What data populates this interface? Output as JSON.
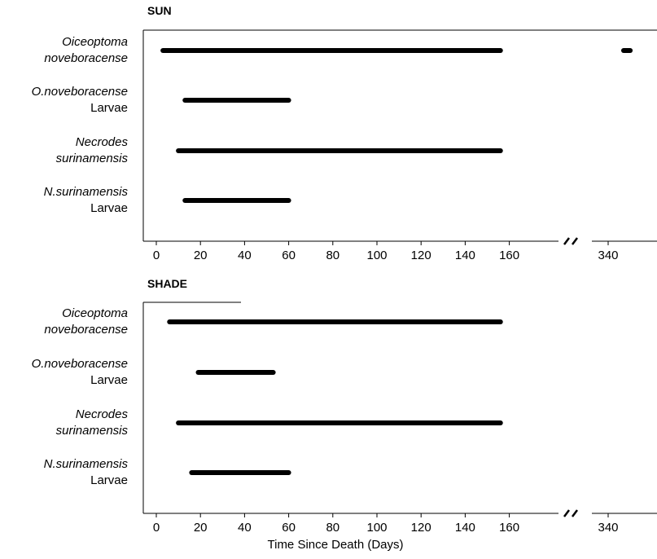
{
  "chart_data": [
    {
      "type": "gantt",
      "title": "SUN",
      "xlabel": "",
      "x_ticks": [
        0,
        20,
        40,
        60,
        80,
        100,
        120,
        140,
        160,
        340
      ],
      "x_axis_break": true,
      "xlim": [
        0,
        360
      ],
      "categories": [
        {
          "line1": "Oiceoptoma",
          "line1_italic": true,
          "line2": "noveboracense",
          "line2_italic": true
        },
        {
          "line1": "O.noveboracense",
          "line1_italic": true,
          "line2": "Larvae",
          "line2_italic": false
        },
        {
          "line1": "Necrodes",
          "line1_italic": true,
          "line2": "surinamensis",
          "line2_italic": true
        },
        {
          "line1": "N.surinamensis",
          "line1_italic": true,
          "line2": "Larvae",
          "line2_italic": false
        }
      ],
      "bars": [
        {
          "category": 0,
          "start": 3,
          "end": 156
        },
        {
          "category": 0,
          "start": 347,
          "end": 350
        },
        {
          "category": 1,
          "start": 13,
          "end": 60
        },
        {
          "category": 2,
          "start": 10,
          "end": 156
        },
        {
          "category": 3,
          "start": 13,
          "end": 60
        }
      ],
      "bar_color": "#000000",
      "grid": false
    },
    {
      "type": "gantt",
      "title": "SHADE",
      "xlabel": "Time Since Death (Days)",
      "x_ticks": [
        0,
        20,
        40,
        60,
        80,
        100,
        120,
        140,
        160,
        340
      ],
      "x_axis_break": true,
      "xlim": [
        0,
        360
      ],
      "categories": [
        {
          "line1": "Oiceoptoma",
          "line1_italic": true,
          "line2": "noveboracense",
          "line2_italic": true
        },
        {
          "line1": "O.noveboracense",
          "line1_italic": true,
          "line2": "Larvae",
          "line2_italic": false
        },
        {
          "line1": "Necrodes",
          "line1_italic": true,
          "line2": "surinamensis",
          "line2_italic": true
        },
        {
          "line1": "N.surinamensis",
          "line1_italic": true,
          "line2": "Larvae",
          "line2_italic": false
        }
      ],
      "bars": [
        {
          "category": 0,
          "start": 6,
          "end": 156
        },
        {
          "category": 1,
          "start": 19,
          "end": 53
        },
        {
          "category": 2,
          "start": 10,
          "end": 156
        },
        {
          "category": 3,
          "start": 16,
          "end": 60
        }
      ],
      "bar_color": "#000000",
      "grid": false
    }
  ]
}
